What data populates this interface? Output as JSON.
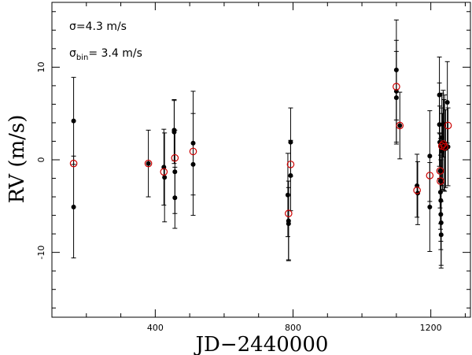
{
  "chart_data": {
    "type": "scatter",
    "xlabel": "JD−2440000",
    "ylabel": "RV  (m/s)",
    "xlim": [
      100,
      1315
    ],
    "ylim": [
      -17,
      17
    ],
    "xticks": [
      400,
      800,
      1200
    ],
    "yticks": [
      -10,
      0,
      10
    ],
    "annotations": {
      "sigma": "σ=4.3  m/s",
      "sigma_bin_symbol": "σ",
      "sigma_bin_sub": "bin",
      "sigma_bin_value": "= 3.4  m/s"
    },
    "colors": {
      "points": "#000000",
      "binned": "#cc0000",
      "frame": "#000000"
    },
    "series": [
      {
        "marker": "filled-circle",
        "color": "#000000",
        "points": [
          {
            "x": 163,
            "y": 4.2,
            "err": 4.7
          },
          {
            "x": 163,
            "y": -5.1,
            "err": 5.5
          },
          {
            "x": 380,
            "y": -0.4,
            "err": 3.6
          },
          {
            "x": 425,
            "y": -0.8,
            "err": 4.1
          },
          {
            "x": 427,
            "y": -1.9,
            "err": 4.8
          },
          {
            "x": 455,
            "y": 3.2,
            "err": 3.3
          },
          {
            "x": 455,
            "y": 3.0,
            "err": 3.4
          },
          {
            "x": 457,
            "y": -1.3,
            "err": 4.5
          },
          {
            "x": 457,
            "y": -4.1,
            "err": 3.3
          },
          {
            "x": 510,
            "y": 1.8,
            "err": 5.6
          },
          {
            "x": 510,
            "y": -0.5,
            "err": 5.5
          },
          {
            "x": 785,
            "y": -3.8,
            "err": 4.5
          },
          {
            "x": 787,
            "y": -6.6,
            "err": 4.3
          },
          {
            "x": 787,
            "y": -6.9,
            "err": 3.9
          },
          {
            "x": 793,
            "y": 1.9,
            "err": 3.7
          },
          {
            "x": 793,
            "y": -1.7,
            "err": 3.8
          },
          {
            "x": 1100,
            "y": 9.7,
            "err": 5.4
          },
          {
            "x": 1100,
            "y": 7.4,
            "err": 5.5
          },
          {
            "x": 1100,
            "y": 6.7,
            "err": 5.0
          },
          {
            "x": 1110,
            "y": 3.7,
            "err": 3.6
          },
          {
            "x": 1160,
            "y": -2.8,
            "err": 3.4
          },
          {
            "x": 1162,
            "y": -3.6,
            "err": 3.4
          },
          {
            "x": 1197,
            "y": 0.4,
            "err": 4.9
          },
          {
            "x": 1197,
            "y": -5.1,
            "err": 4.8
          },
          {
            "x": 1225,
            "y": 7.0,
            "err": 4.1
          },
          {
            "x": 1225,
            "y": 3.8,
            "err": 4.5
          },
          {
            "x": 1226,
            "y": 1.9,
            "err": 3.9
          },
          {
            "x": 1227,
            "y": -1.2,
            "err": 4.0
          },
          {
            "x": 1228,
            "y": -2.3,
            "err": 4.6
          },
          {
            "x": 1228,
            "y": -3.5,
            "err": 4.0
          },
          {
            "x": 1229,
            "y": -4.4,
            "err": 4.4
          },
          {
            "x": 1229,
            "y": -5.9,
            "err": 3.8
          },
          {
            "x": 1230,
            "y": -6.8,
            "err": 4.6
          },
          {
            "x": 1230,
            "y": -8.1,
            "err": 3.6
          },
          {
            "x": 1232,
            "y": 2.4,
            "err": 4.8
          },
          {
            "x": 1232,
            "y": 1.4,
            "err": 4.2
          },
          {
            "x": 1234,
            "y": 0.9,
            "err": 4.1
          },
          {
            "x": 1236,
            "y": 3.9,
            "err": 3.6
          },
          {
            "x": 1238,
            "y": 1.6,
            "err": 4.9
          },
          {
            "x": 1240,
            "y": 1.8,
            "err": 5.2
          },
          {
            "x": 1243,
            "y": 1.2,
            "err": 4.2
          },
          {
            "x": 1248,
            "y": 6.2,
            "err": 4.4
          },
          {
            "x": 1250,
            "y": 1.4,
            "err": 4.2
          }
        ]
      },
      {
        "marker": "open-circle",
        "color": "#cc0000",
        "points": [
          {
            "x": 163,
            "y": -0.4
          },
          {
            "x": 380,
            "y": -0.4
          },
          {
            "x": 425,
            "y": -1.3
          },
          {
            "x": 457,
            "y": 0.2
          },
          {
            "x": 510,
            "y": 0.9
          },
          {
            "x": 787,
            "y": -5.8
          },
          {
            "x": 793,
            "y": -0.5
          },
          {
            "x": 1100,
            "y": 7.9
          },
          {
            "x": 1110,
            "y": 3.7
          },
          {
            "x": 1160,
            "y": -3.3
          },
          {
            "x": 1197,
            "y": -1.7
          },
          {
            "x": 1227,
            "y": -1.2
          },
          {
            "x": 1228,
            "y": -2.3
          },
          {
            "x": 1232,
            "y": 1.5
          },
          {
            "x": 1236,
            "y": 1.7
          },
          {
            "x": 1240,
            "y": 1.4
          },
          {
            "x": 1250,
            "y": 3.7
          }
        ]
      }
    ]
  }
}
